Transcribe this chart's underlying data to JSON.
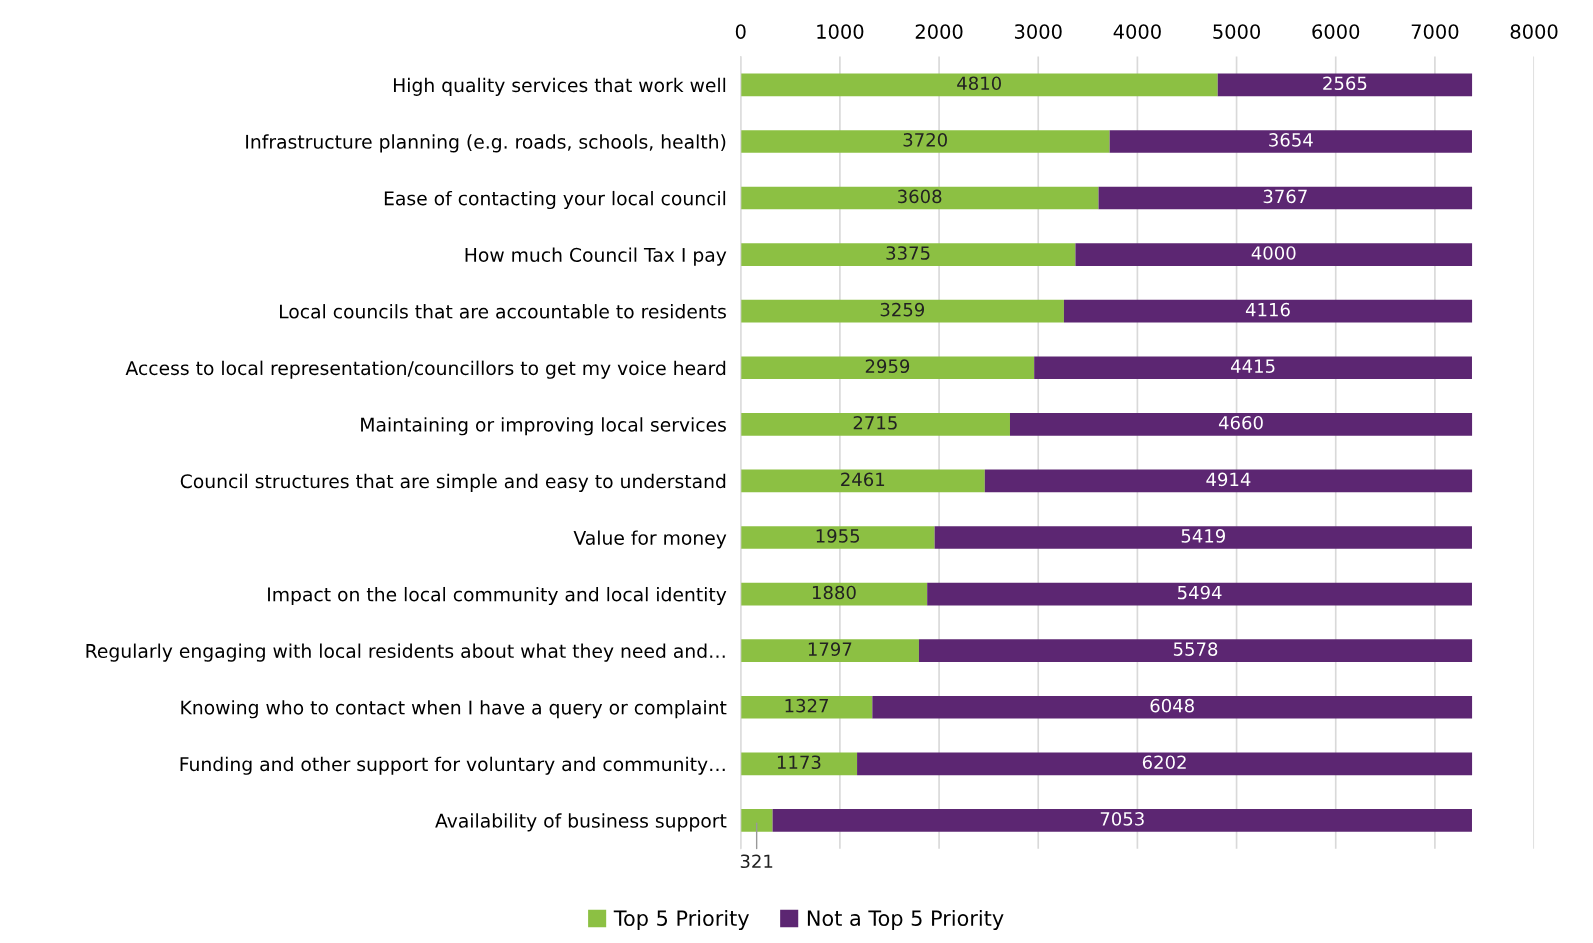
{
  "chart_data": {
    "type": "bar",
    "orientation": "horizontal",
    "stacked": true,
    "categories": [
      "High quality services that work well",
      "Infrastructure planning (e.g. roads, schools, health)",
      "Ease of contacting your local council",
      "How much Council Tax I pay",
      "Local councils that are accountable to residents",
      "Access to local representation/councillors to get my voice heard",
      "Maintaining or improving local services",
      "Council structures that are simple and easy to understand",
      "Value for money",
      "Impact on the local community and local identity",
      "Regularly engaging with local residents about what they need and…",
      "Knowing who to contact when I have a query or complaint",
      "Funding and other support for voluntary and community…",
      "Availability of business support"
    ],
    "series": [
      {
        "name": "Top 5 Priority",
        "color": "#8cc043",
        "values": [
          4810,
          3720,
          3608,
          3375,
          3259,
          2959,
          2715,
          2461,
          1955,
          1880,
          1797,
          1327,
          1173,
          321
        ]
      },
      {
        "name": "Not a Top 5 Priority",
        "color": "#5c2672",
        "values": [
          2565,
          3654,
          3767,
          4000,
          4116,
          4415,
          4660,
          4914,
          5419,
          5494,
          5578,
          6048,
          6202,
          7053
        ]
      }
    ],
    "xlim": [
      0,
      8000
    ],
    "xticks": [
      0,
      1000,
      2000,
      3000,
      4000,
      5000,
      6000,
      7000,
      8000
    ],
    "grid": "x",
    "legend": "bottom",
    "data_labels": true
  }
}
